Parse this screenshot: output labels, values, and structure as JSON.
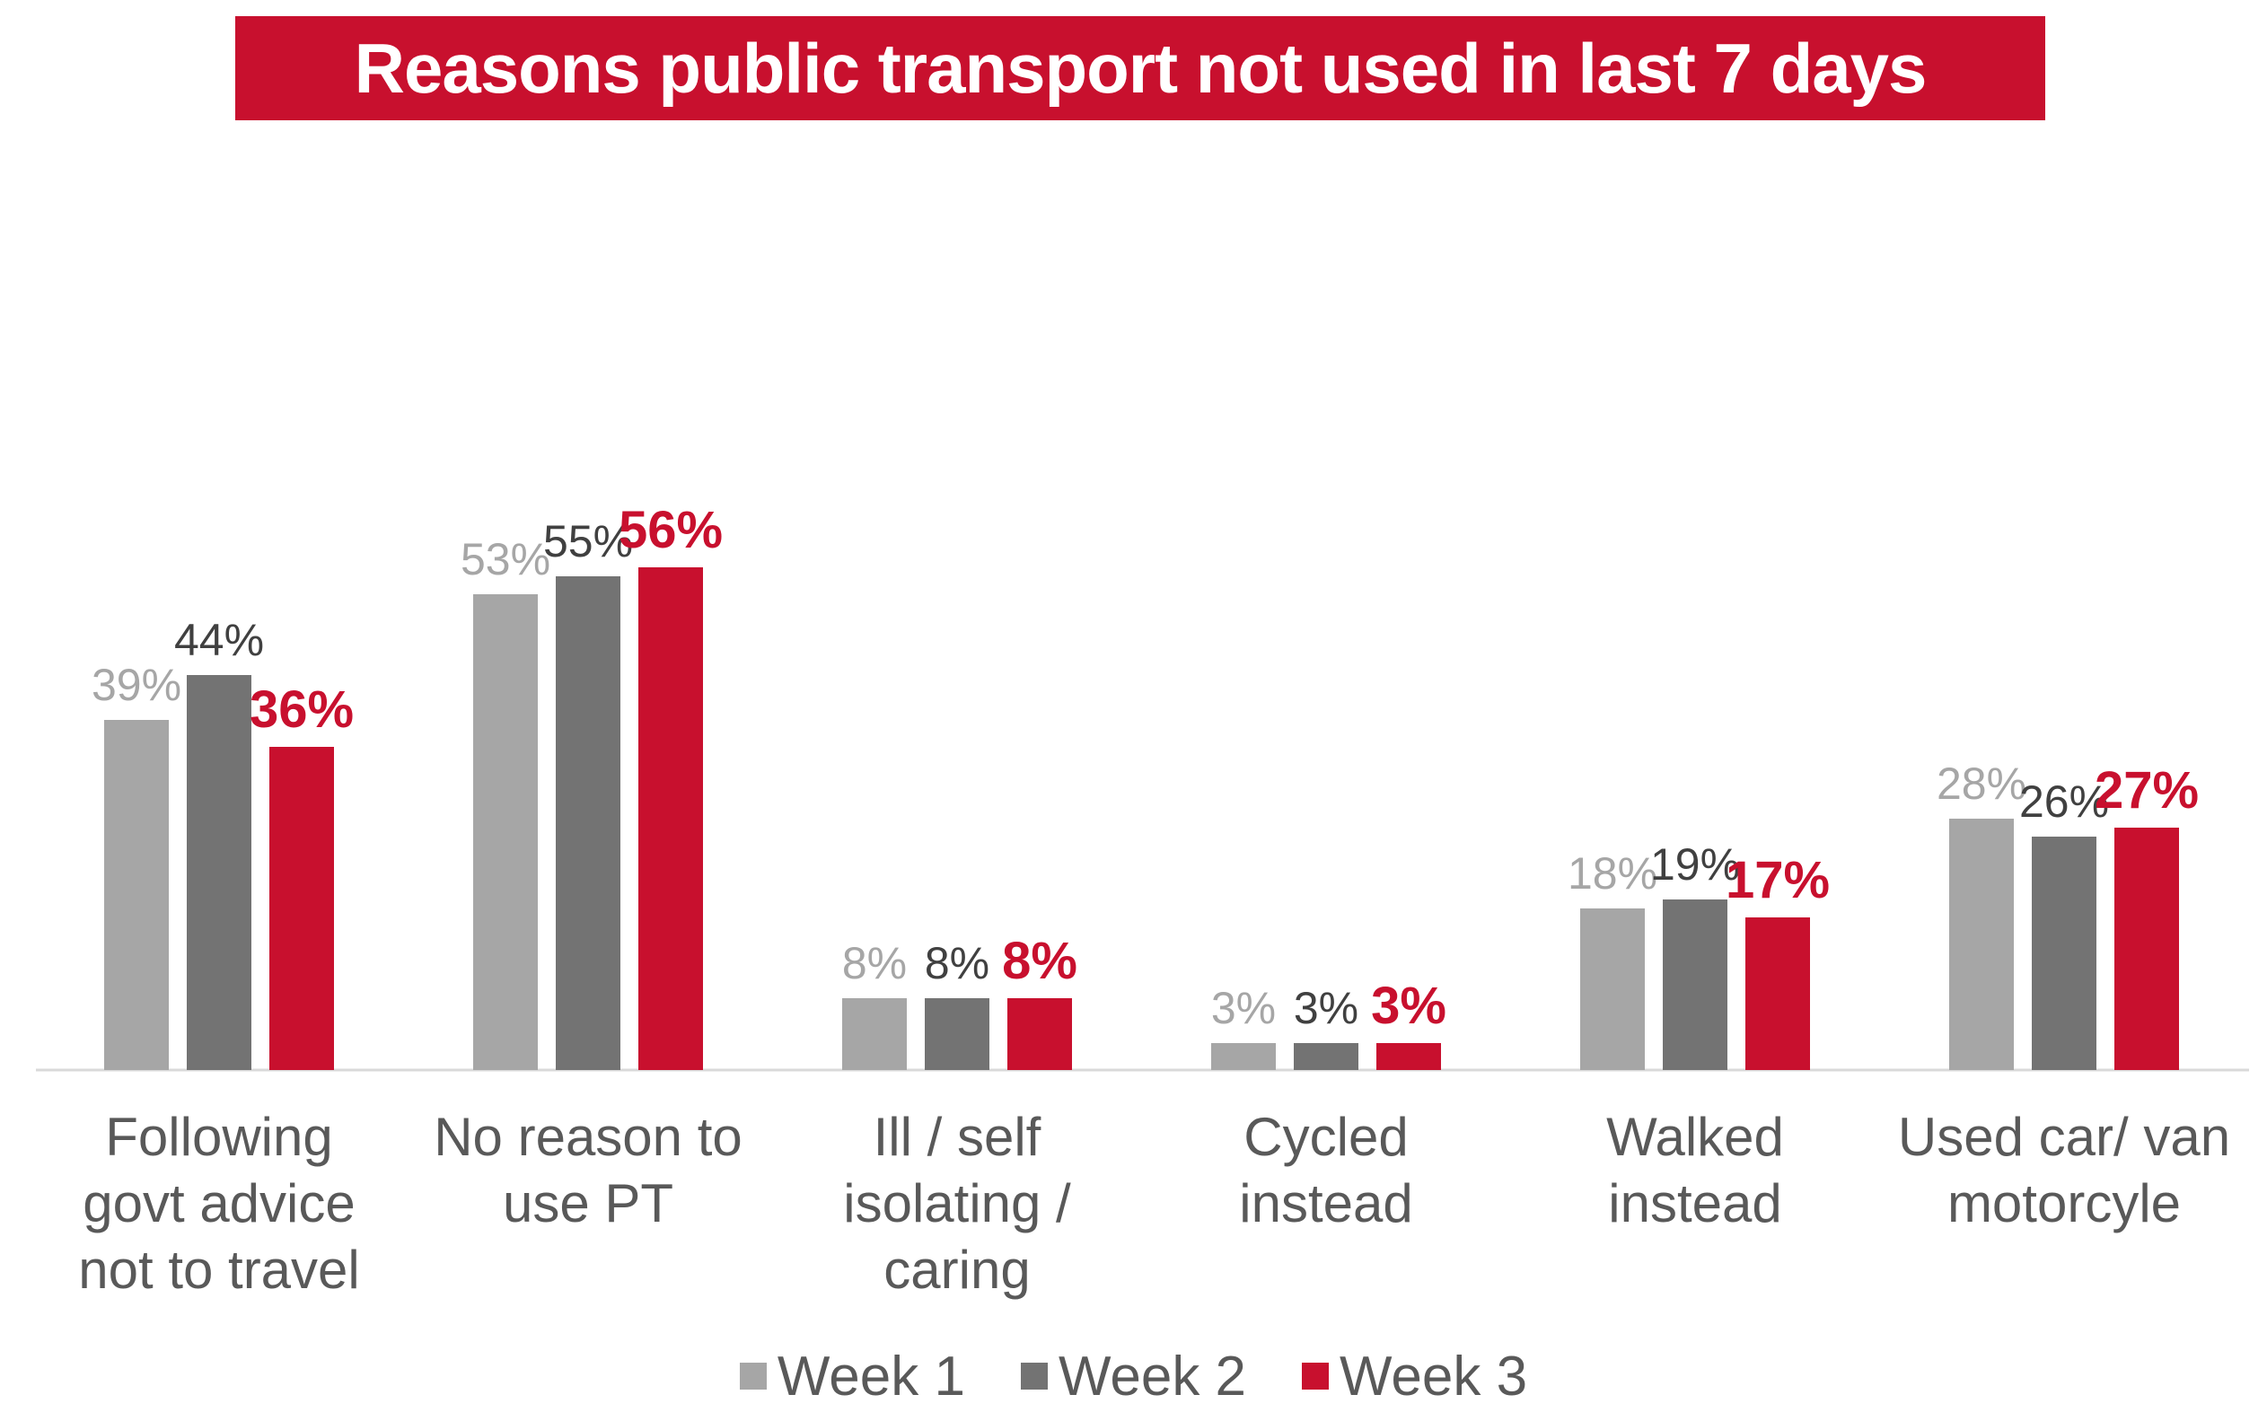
{
  "chart_data": {
    "type": "bar",
    "title": "Reasons public transport not used in last 7 days",
    "categories": [
      [
        "Following",
        "govt advice",
        "not to travel"
      ],
      [
        "No reason to",
        "use PT"
      ],
      [
        "Ill / self",
        "isolating /",
        "caring"
      ],
      [
        "Cycled",
        "instead"
      ],
      [
        "Walked",
        "instead"
      ],
      [
        "Used car/ van",
        "motorcyle"
      ]
    ],
    "series": [
      {
        "name": "Week 1",
        "color": "#a6a6a6",
        "label_color": "#a6a6a6",
        "label_bold": false,
        "values": [
          39,
          53,
          8,
          3,
          18,
          28
        ],
        "labels": [
          "39%",
          "53%",
          "8%",
          "3%",
          "18%",
          "28%"
        ]
      },
      {
        "name": "Week 2",
        "color": "#737373",
        "label_color": "#404040",
        "label_bold": false,
        "values": [
          44,
          55,
          8,
          3,
          19,
          26
        ],
        "labels": [
          "44%",
          "55%",
          "8%",
          "3%",
          "19%",
          "26%"
        ]
      },
      {
        "name": "Week 3",
        "color": "#c8102e",
        "label_color": "#c8102e",
        "label_bold": true,
        "values": [
          36,
          56,
          8,
          3,
          17,
          27
        ],
        "labels": [
          "36%",
          "56%",
          "8%",
          "3%",
          "17%",
          "27%"
        ]
      }
    ],
    "ylim": [
      0,
      60
    ],
    "grid": false,
    "legend_position": "bottom",
    "category_label_color": "#595959",
    "baseline_color": "#d9d9d9"
  }
}
